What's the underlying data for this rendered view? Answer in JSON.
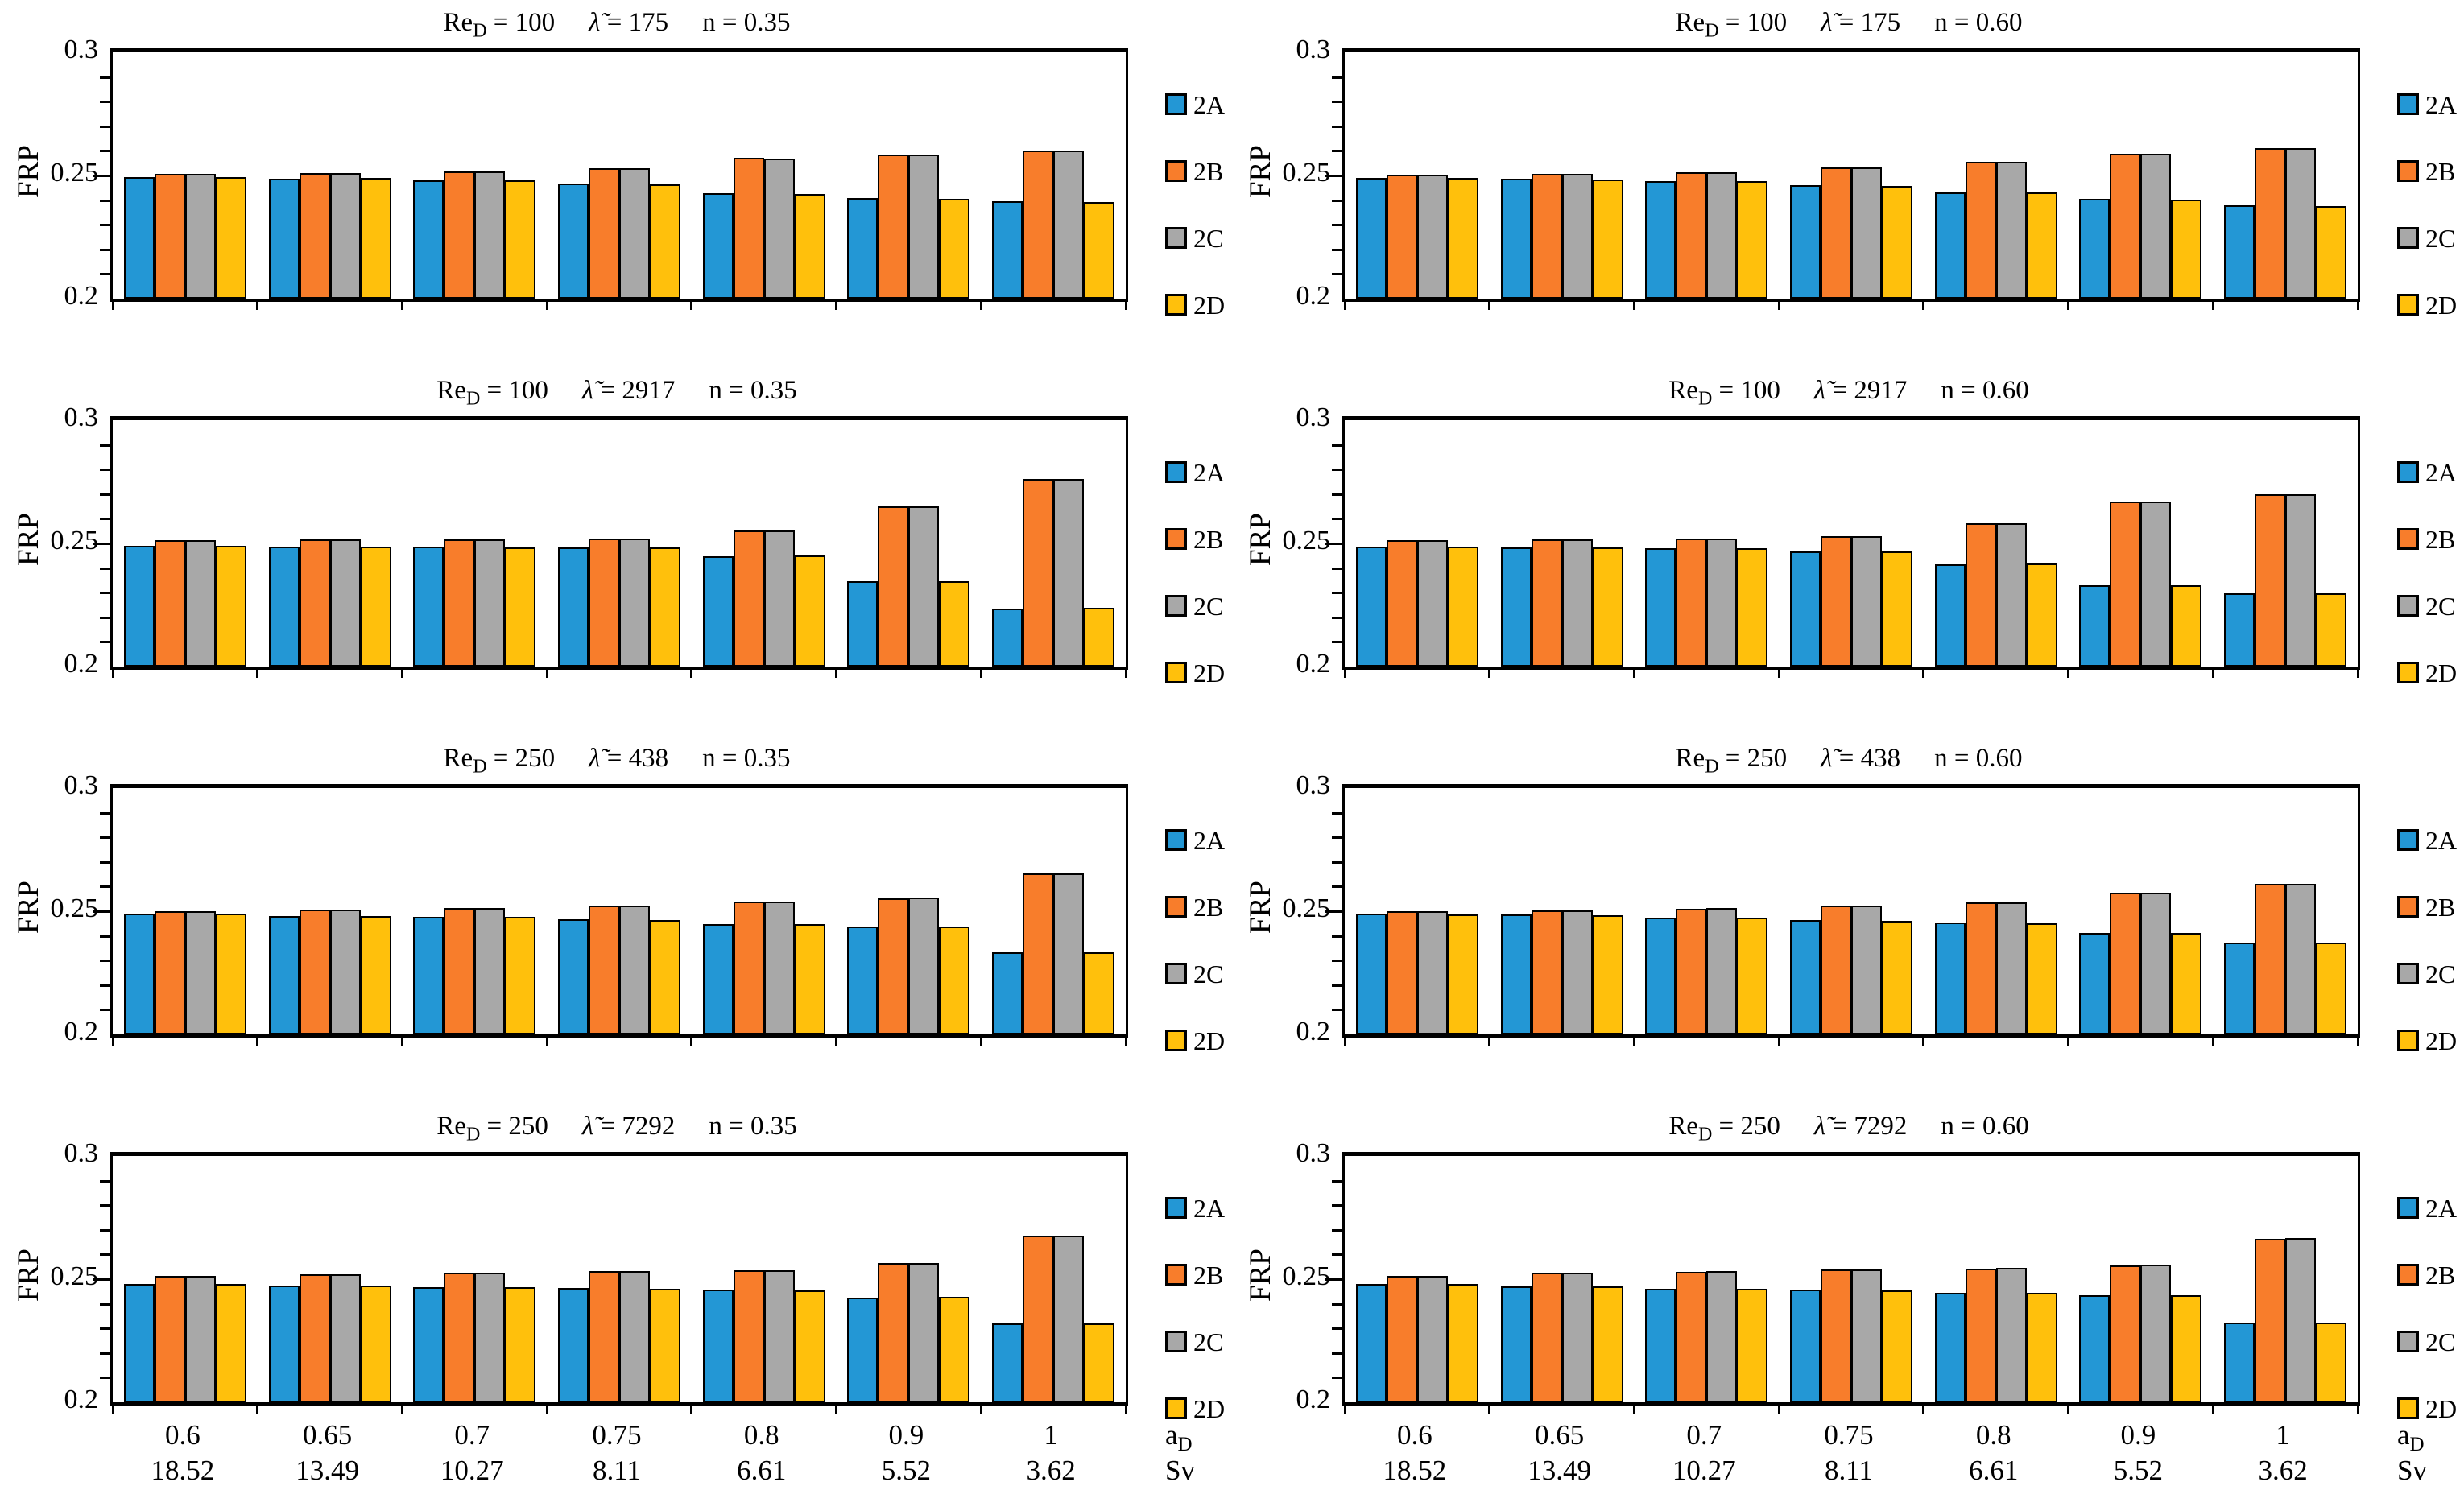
{
  "figure": {
    "y_axis": {
      "label": "FRP",
      "tick_labels_top_to_bottom": [
        "0.3",
        "0.25",
        "0.2"
      ],
      "min": 0.2,
      "max": 0.3,
      "minor_tick_step": 0.01
    },
    "x_axis": {
      "categories_aD": [
        "0.6",
        "0.65",
        "0.7",
        "0.75",
        "0.8",
        "0.9",
        "1"
      ],
      "categories_Sv": [
        "18.52",
        "13.49",
        "10.27",
        "8.11",
        "6.61",
        "5.52",
        "3.62"
      ],
      "name_row1_base": "a",
      "name_row1_sub": "D",
      "name_row2": "Sv"
    },
    "legend": [
      {
        "label": "2A",
        "color": "#2397D5"
      },
      {
        "label": "2B",
        "color": "#F87D2B"
      },
      {
        "label": "2C",
        "color": "#A8A8A8"
      },
      {
        "label": "2D",
        "color": "#FFC00C"
      }
    ],
    "title_labels": {
      "re_base": "Re",
      "re_sub": "D",
      "lambda": "λ̃",
      "n": "n",
      "eq": " = "
    }
  },
  "chart_data": [
    {
      "type": "bar",
      "position": "row1-left",
      "title": "ReD = 100   λ̃ = 175   n = 0.35",
      "params": {
        "ReD": "100",
        "lambda": "175",
        "n": "0.35"
      },
      "ylabel": "FRP",
      "ylim": [
        0.2,
        0.3
      ],
      "yticks": [
        0.2,
        0.25,
        0.3
      ],
      "grid": false,
      "legend_position": "right",
      "x_categories": [
        "0.6",
        "0.65",
        "0.7",
        "0.75",
        "0.8",
        "0.9",
        "1"
      ],
      "x_categories_secondary": [
        "18.52",
        "13.49",
        "10.27",
        "8.11",
        "6.61",
        "5.52",
        "3.62"
      ],
      "series": [
        {
          "name": "2A",
          "values": [
            0.2492,
            0.2488,
            0.2479,
            0.2468,
            0.2427,
            0.2409,
            0.2396
          ]
        },
        {
          "name": "2B",
          "values": [
            0.2506,
            0.2511,
            0.2516,
            0.2531,
            0.2571,
            0.2585,
            0.2601
          ]
        },
        {
          "name": "2C",
          "values": [
            0.2506,
            0.2511,
            0.2517,
            0.2531,
            0.2569,
            0.2585,
            0.2601
          ]
        },
        {
          "name": "2D",
          "values": [
            0.2494,
            0.2489,
            0.2479,
            0.2464,
            0.2424,
            0.2406,
            0.2393
          ]
        }
      ]
    },
    {
      "type": "bar",
      "position": "row1-right",
      "title": "ReD = 100   λ̃ = 175   n = 0.60",
      "params": {
        "ReD": "100",
        "lambda": "175",
        "n": "0.60"
      },
      "ylabel": "FRP",
      "ylim": [
        0.2,
        0.3
      ],
      "yticks": [
        0.2,
        0.25,
        0.3
      ],
      "grid": false,
      "legend_position": "right",
      "x_categories": [
        "0.6",
        "0.65",
        "0.7",
        "0.75",
        "0.8",
        "0.9",
        "1"
      ],
      "x_categories_secondary": [
        "18.52",
        "13.49",
        "10.27",
        "8.11",
        "6.61",
        "5.52",
        "3.62"
      ],
      "series": [
        {
          "name": "2A",
          "values": [
            0.249,
            0.2486,
            0.2478,
            0.2461,
            0.2433,
            0.2404,
            0.2378
          ]
        },
        {
          "name": "2B",
          "values": [
            0.2504,
            0.2508,
            0.2512,
            0.2533,
            0.2555,
            0.2587,
            0.2612
          ]
        },
        {
          "name": "2C",
          "values": [
            0.2504,
            0.2508,
            0.2514,
            0.2532,
            0.2555,
            0.2587,
            0.2612
          ]
        },
        {
          "name": "2D",
          "values": [
            0.2491,
            0.2485,
            0.2477,
            0.2458,
            0.2431,
            0.2401,
            0.2377
          ]
        }
      ]
    },
    {
      "type": "bar",
      "position": "row2-left",
      "title": "ReD = 100   λ̃ = 2917   n = 0.35",
      "params": {
        "ReD": "100",
        "lambda": "2917",
        "n": "0.35"
      },
      "ylabel": "FRP",
      "ylim": [
        0.2,
        0.3
      ],
      "yticks": [
        0.2,
        0.25,
        0.3
      ],
      "grid": false,
      "legend_position": "right",
      "x_categories": [
        "0.6",
        "0.65",
        "0.7",
        "0.75",
        "0.8",
        "0.9",
        "1"
      ],
      "x_categories_secondary": [
        "18.52",
        "13.49",
        "10.27",
        "8.11",
        "6.61",
        "5.52",
        "3.62"
      ],
      "series": [
        {
          "name": "2A",
          "values": [
            0.2491,
            0.2488,
            0.2486,
            0.2484,
            0.2448,
            0.2347,
            0.2235
          ]
        },
        {
          "name": "2B",
          "values": [
            0.2512,
            0.2515,
            0.2518,
            0.2521,
            0.2552,
            0.2651,
            0.2762
          ]
        },
        {
          "name": "2C",
          "values": [
            0.2512,
            0.2515,
            0.2518,
            0.2521,
            0.2552,
            0.2651,
            0.2762
          ]
        },
        {
          "name": "2D",
          "values": [
            0.249,
            0.2487,
            0.2485,
            0.2483,
            0.245,
            0.2345,
            0.2238
          ]
        }
      ]
    },
    {
      "type": "bar",
      "position": "row2-right",
      "title": "ReD = 100   λ̃ = 2917   n = 0.60",
      "params": {
        "ReD": "100",
        "lambda": "2917",
        "n": "0.60"
      },
      "ylabel": "FRP",
      "ylim": [
        0.2,
        0.3
      ],
      "yticks": [
        0.2,
        0.25,
        0.3
      ],
      "grid": false,
      "legend_position": "right",
      "x_categories": [
        "0.6",
        "0.65",
        "0.7",
        "0.75",
        "0.8",
        "0.9",
        "1"
      ],
      "x_categories_secondary": [
        "18.52",
        "13.49",
        "10.27",
        "8.11",
        "6.61",
        "5.52",
        "3.62"
      ],
      "series": [
        {
          "name": "2A",
          "values": [
            0.2488,
            0.2484,
            0.2481,
            0.2468,
            0.2416,
            0.2329,
            0.2296
          ]
        },
        {
          "name": "2B",
          "values": [
            0.2512,
            0.2515,
            0.2519,
            0.2528,
            0.2583,
            0.2671,
            0.27
          ]
        },
        {
          "name": "2C",
          "values": [
            0.2512,
            0.2515,
            0.2519,
            0.2528,
            0.2583,
            0.2671,
            0.27
          ]
        },
        {
          "name": "2D",
          "values": [
            0.2488,
            0.2483,
            0.248,
            0.2467,
            0.2418,
            0.2331,
            0.2296
          ]
        }
      ]
    },
    {
      "type": "bar",
      "position": "row3-left",
      "title": "ReD = 250   λ̃ = 438   n = 0.35",
      "params": {
        "ReD": "250",
        "lambda": "438",
        "n": "0.35"
      },
      "ylabel": "FRP",
      "ylim": [
        0.2,
        0.3
      ],
      "yticks": [
        0.2,
        0.25,
        0.3
      ],
      "grid": false,
      "legend_position": "right",
      "x_categories": [
        "0.6",
        "0.65",
        "0.7",
        "0.75",
        "0.8",
        "0.9",
        "1"
      ],
      "x_categories_secondary": [
        "18.52",
        "13.49",
        "10.27",
        "8.11",
        "6.61",
        "5.52",
        "3.62"
      ],
      "series": [
        {
          "name": "2A",
          "values": [
            0.249,
            0.2482,
            0.2478,
            0.2467,
            0.2449,
            0.2438,
            0.2333
          ]
        },
        {
          "name": "2B",
          "values": [
            0.2501,
            0.2507,
            0.2513,
            0.2522,
            0.254,
            0.2553,
            0.2655
          ]
        },
        {
          "name": "2C",
          "values": [
            0.2501,
            0.2507,
            0.2513,
            0.2522,
            0.254,
            0.2557,
            0.2655
          ]
        },
        {
          "name": "2D",
          "values": [
            0.2489,
            0.2481,
            0.2477,
            0.2465,
            0.2447,
            0.2437,
            0.2332
          ]
        }
      ]
    },
    {
      "type": "bar",
      "position": "row3-right",
      "title": "ReD = 250   λ̃ = 438   n = 0.60",
      "params": {
        "ReD": "250",
        "lambda": "438",
        "n": "0.60"
      },
      "ylabel": "FRP",
      "ylim": [
        0.2,
        0.3
      ],
      "yticks": [
        0.2,
        0.25,
        0.3
      ],
      "grid": false,
      "legend_position": "right",
      "x_categories": [
        "0.6",
        "0.65",
        "0.7",
        "0.75",
        "0.8",
        "0.9",
        "1"
      ],
      "x_categories_secondary": [
        "18.52",
        "13.49",
        "10.27",
        "8.11",
        "6.61",
        "5.52",
        "3.62"
      ],
      "series": [
        {
          "name": "2A",
          "values": [
            0.2489,
            0.2486,
            0.2475,
            0.2464,
            0.2453,
            0.2411,
            0.2372
          ]
        },
        {
          "name": "2B",
          "values": [
            0.2501,
            0.2504,
            0.2511,
            0.2522,
            0.2536,
            0.2575,
            0.261
          ]
        },
        {
          "name": "2C",
          "values": [
            0.2501,
            0.2503,
            0.2514,
            0.2523,
            0.2536,
            0.2575,
            0.2612
          ]
        },
        {
          "name": "2D",
          "values": [
            0.2488,
            0.2484,
            0.2474,
            0.2461,
            0.2452,
            0.2413,
            0.2372
          ]
        }
      ]
    },
    {
      "type": "bar",
      "position": "row4-left",
      "title": "ReD = 250   λ̃ = 7292   n = 0.35",
      "params": {
        "ReD": "250",
        "lambda": "7292",
        "n": "0.35"
      },
      "ylabel": "FRP",
      "ylim": [
        0.2,
        0.3
      ],
      "yticks": [
        0.2,
        0.25,
        0.3
      ],
      "grid": false,
      "legend_position": "right",
      "x_categories": [
        "0.6",
        "0.65",
        "0.7",
        "0.75",
        "0.8",
        "0.9",
        "1"
      ],
      "x_categories_secondary": [
        "18.52",
        "13.49",
        "10.27",
        "8.11",
        "6.61",
        "5.52",
        "3.62"
      ],
      "series": [
        {
          "name": "2A",
          "values": [
            0.248,
            0.2475,
            0.2469,
            0.2464,
            0.2456,
            0.2425,
            0.232
          ]
        },
        {
          "name": "2B",
          "values": [
            0.2512,
            0.2519,
            0.2525,
            0.2533,
            0.2537,
            0.2567,
            0.2678
          ]
        },
        {
          "name": "2C",
          "values": [
            0.2512,
            0.2519,
            0.2525,
            0.2532,
            0.2537,
            0.2567,
            0.2678
          ]
        },
        {
          "name": "2D",
          "values": [
            0.2479,
            0.2474,
            0.2468,
            0.2462,
            0.2454,
            0.2427,
            0.232
          ]
        }
      ]
    },
    {
      "type": "bar",
      "position": "row4-right",
      "title": "ReD = 250   λ̃ = 7292   n = 0.60",
      "params": {
        "ReD": "250",
        "lambda": "7292",
        "n": "0.60"
      },
      "ylabel": "FRP",
      "ylim": [
        0.2,
        0.3
      ],
      "yticks": [
        0.2,
        0.25,
        0.3
      ],
      "grid": false,
      "legend_position": "right",
      "x_categories": [
        "0.6",
        "0.65",
        "0.7",
        "0.75",
        "0.8",
        "0.9",
        "1"
      ],
      "x_categories_secondary": [
        "18.52",
        "13.49",
        "10.27",
        "8.11",
        "6.61",
        "5.52",
        "3.62"
      ],
      "series": [
        {
          "name": "2A",
          "values": [
            0.248,
            0.2471,
            0.2462,
            0.2456,
            0.2446,
            0.2436,
            0.2325
          ]
        },
        {
          "name": "2B",
          "values": [
            0.2512,
            0.2525,
            0.253,
            0.2538,
            0.2543,
            0.2556,
            0.2664
          ]
        },
        {
          "name": "2C",
          "values": [
            0.2512,
            0.2525,
            0.2532,
            0.2538,
            0.2545,
            0.2558,
            0.2666
          ]
        },
        {
          "name": "2D",
          "values": [
            0.2479,
            0.247,
            0.2461,
            0.2454,
            0.2444,
            0.2435,
            0.2324
          ]
        }
      ]
    }
  ]
}
